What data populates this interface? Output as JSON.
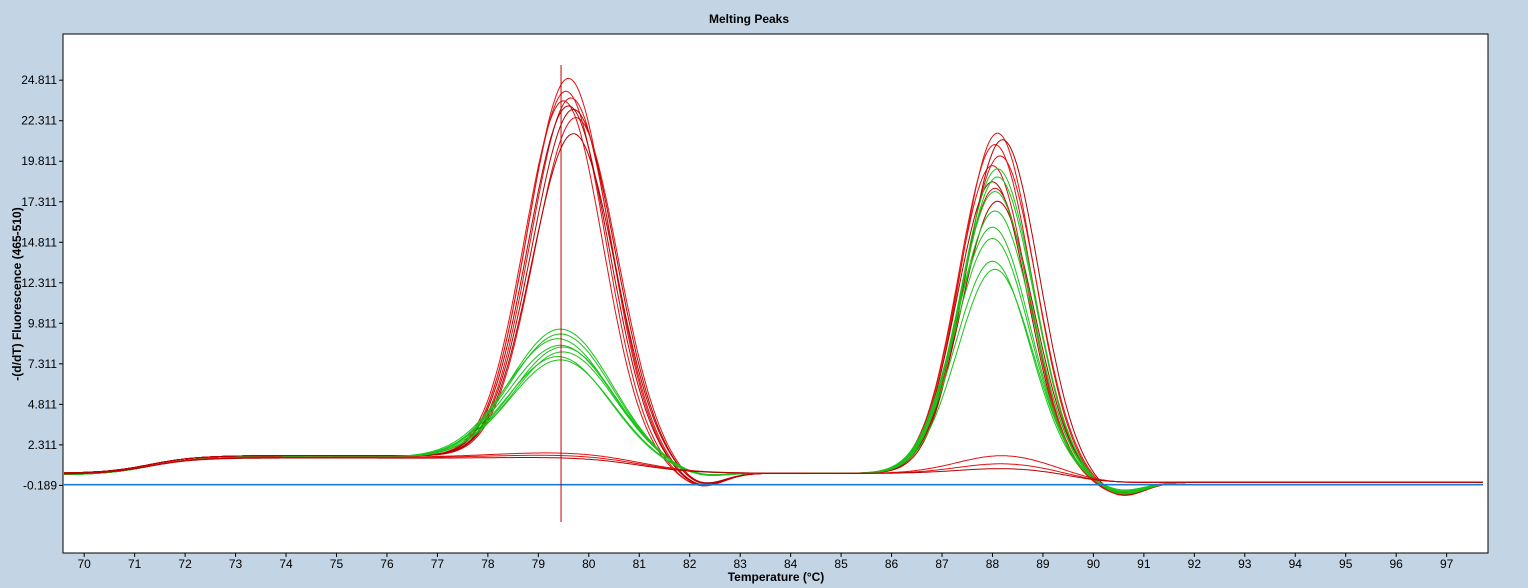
{
  "chart_data": {
    "type": "line",
    "title": "Melting Peaks",
    "xlabel": "Temperature (°C)",
    "ylabel": "-(d/dT) Fluorescence (465-510)",
    "xlim": [
      69.6,
      97.8
    ],
    "ylim": [
      -4.3,
      27.6
    ],
    "x_ticks": [
      70,
      71,
      72,
      73,
      74,
      75,
      76,
      77,
      78,
      79,
      80,
      81,
      82,
      83,
      84,
      85,
      86,
      87,
      88,
      89,
      90,
      91,
      92,
      93,
      94,
      95,
      96,
      97
    ],
    "y_ticks": [
      -0.189,
      2.311,
      4.811,
      7.311,
      9.811,
      12.311,
      14.811,
      17.311,
      19.811,
      22.311,
      24.811
    ],
    "y_tick_labels": [
      "-0.189",
      "2.311",
      "4.811",
      "7.311",
      "9.811",
      "12.311",
      "14.811",
      "17.311",
      "19.811",
      "22.311",
      "24.811"
    ],
    "cursor_x": 79.45,
    "grid": false,
    "legend": "none",
    "colors": {
      "red": "#e01010",
      "dark_red": "#b00000",
      "green": "#19c319",
      "blue": "#1a78d0",
      "cursor": "#c00000"
    },
    "series": [
      {
        "color": "red",
        "baseline": [
          0.55,
          1.6,
          1.75,
          1.55
        ],
        "peak1": {
          "center": 79.55,
          "height": 22.6,
          "width": 0.78
        },
        "peak2": {
          "center": 88.05,
          "height": 20.3,
          "width": 0.72
        }
      },
      {
        "color": "red",
        "baseline": [
          0.55,
          1.6,
          1.75,
          1.55
        ],
        "peak1": {
          "center": 79.6,
          "height": 23.4,
          "width": 0.8
        },
        "peak2": {
          "center": 88.1,
          "height": 21.0,
          "width": 0.72
        }
      },
      {
        "color": "red",
        "baseline": [
          0.55,
          1.6,
          1.75,
          1.55
        ],
        "peak1": {
          "center": 79.65,
          "height": 22.2,
          "width": 0.8
        },
        "peak2": {
          "center": 88.15,
          "height": 19.6,
          "width": 0.72
        }
      },
      {
        "color": "dark_red",
        "baseline": [
          0.55,
          1.6,
          1.75,
          1.55
        ],
        "peak1": {
          "center": 79.7,
          "height": 21.5,
          "width": 0.82
        },
        "peak2": {
          "center": 88.0,
          "height": 18.0,
          "width": 0.7
        }
      },
      {
        "color": "red",
        "baseline": [
          0.55,
          1.6,
          1.75,
          1.55
        ],
        "peak1": {
          "center": 79.75,
          "height": 21.0,
          "width": 0.82
        },
        "peak2": {
          "center": 88.05,
          "height": 17.6,
          "width": 0.7
        }
      },
      {
        "color": "dark_red",
        "baseline": [
          0.55,
          1.6,
          1.75,
          1.55
        ],
        "peak1": {
          "center": 79.7,
          "height": 20.0,
          "width": 0.82
        },
        "peak2": {
          "center": 88.1,
          "height": 16.8,
          "width": 0.72
        }
      },
      {
        "color": "red",
        "baseline": [
          0.55,
          1.6,
          1.75,
          1.55
        ],
        "peak1": {
          "center": 79.5,
          "height": 22.0,
          "width": 0.78
        },
        "peak2": {
          "center": 88.0,
          "height": 19.0,
          "width": 0.7
        }
      },
      {
        "color": "dark_red",
        "baseline": [
          0.55,
          1.6,
          1.75,
          1.55
        ],
        "peak1": {
          "center": 79.6,
          "height": 21.7,
          "width": 0.8
        },
        "peak2": {
          "center": 88.2,
          "height": 20.6,
          "width": 0.72
        }
      },
      {
        "color": "green",
        "baseline": [
          0.45,
          1.5,
          1.7,
          1.45
        ],
        "peak1": {
          "center": 79.45,
          "height": 8.0,
          "width": 1.0
        },
        "peak2": {
          "center": 88.1,
          "height": 18.8,
          "width": 0.72
        }
      },
      {
        "color": "green",
        "baseline": [
          0.45,
          1.5,
          1.7,
          1.45
        ],
        "peak1": {
          "center": 79.4,
          "height": 7.4,
          "width": 1.02
        },
        "peak2": {
          "center": 88.05,
          "height": 17.4,
          "width": 0.72
        }
      },
      {
        "color": "green",
        "baseline": [
          0.45,
          1.5,
          1.7,
          1.45
        ],
        "peak1": {
          "center": 79.45,
          "height": 7.0,
          "width": 1.02
        },
        "peak2": {
          "center": 88.0,
          "height": 15.2,
          "width": 0.74
        }
      },
      {
        "color": "green",
        "baseline": [
          0.45,
          1.5,
          1.7,
          1.45
        ],
        "peak1": {
          "center": 79.5,
          "height": 6.6,
          "width": 1.0
        },
        "peak2": {
          "center": 88.0,
          "height": 14.5,
          "width": 0.74
        }
      },
      {
        "color": "green",
        "baseline": [
          0.45,
          1.5,
          1.7,
          1.45
        ],
        "peak1": {
          "center": 79.4,
          "height": 6.3,
          "width": 1.0
        },
        "peak2": {
          "center": 88.0,
          "height": 13.1,
          "width": 0.74
        }
      },
      {
        "color": "green",
        "baseline": [
          0.45,
          1.5,
          1.7,
          1.45
        ],
        "peak1": {
          "center": 79.45,
          "height": 6.1,
          "width": 1.0
        },
        "peak2": {
          "center": 88.05,
          "height": 12.6,
          "width": 0.74
        }
      },
      {
        "color": "green",
        "baseline": [
          0.45,
          1.5,
          1.7,
          1.45
        ],
        "peak1": {
          "center": 79.45,
          "height": 7.7,
          "width": 1.0
        },
        "peak2": {
          "center": 88.1,
          "height": 18.3,
          "width": 0.72
        }
      },
      {
        "color": "green",
        "baseline": [
          0.45,
          1.5,
          1.7,
          1.45
        ],
        "peak1": {
          "center": 79.5,
          "height": 6.9,
          "width": 1.0
        },
        "peak2": {
          "center": 88.05,
          "height": 16.2,
          "width": 0.74
        }
      },
      {
        "color": "red",
        "baseline": [
          0.5,
          1.5,
          1.65,
          1.5
        ],
        "peak1": {
          "center": 79.5,
          "height": 0.35,
          "width": 1.4
        },
        "peak2": {
          "center": 88.2,
          "height": 1.1,
          "width": 0.9
        }
      },
      {
        "color": "red",
        "baseline": [
          0.5,
          1.5,
          1.6,
          1.5
        ],
        "peak1": {
          "center": 79.5,
          "height": 0.2,
          "width": 1.4
        },
        "peak2": {
          "center": 88.2,
          "height": 0.6,
          "width": 0.9
        }
      },
      {
        "color": "dark_red",
        "baseline": [
          0.5,
          1.45,
          1.6,
          1.45
        ],
        "peak1": {
          "center": 79.5,
          "height": 0.1,
          "width": 1.4
        },
        "peak2": {
          "center": 88.2,
          "height": 0.3,
          "width": 0.9
        }
      },
      {
        "color": "blue",
        "flat": -0.15
      }
    ]
  }
}
